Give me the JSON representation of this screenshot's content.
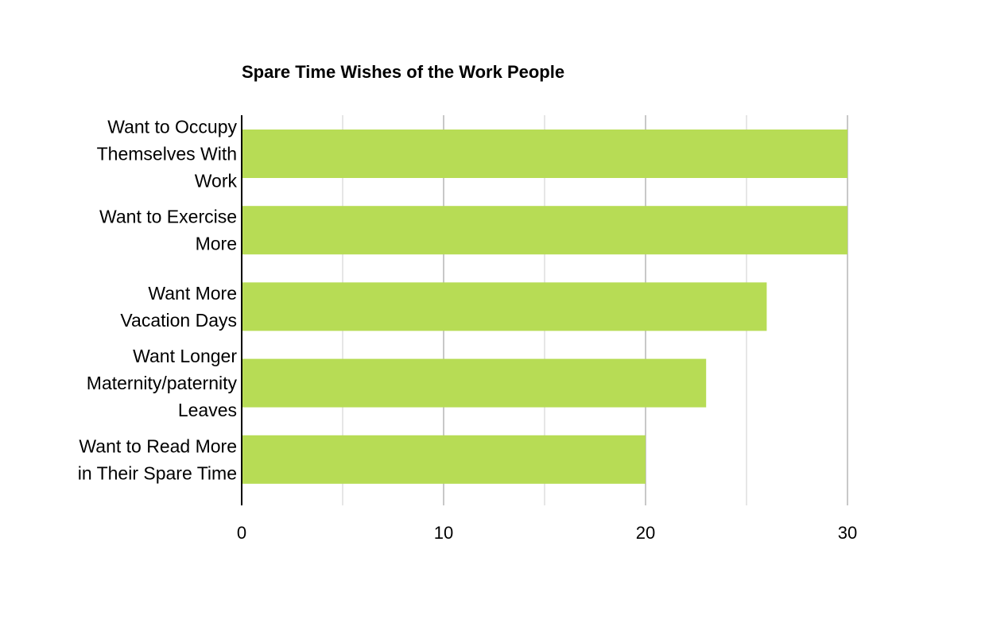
{
  "chart_data": {
    "type": "bar",
    "orientation": "horizontal",
    "title": "Spare Time Wishes of the Work People",
    "categories": [
      [
        "Want to Occupy",
        "Themselves With",
        "Work"
      ],
      [
        "Want to Exercise",
        "More"
      ],
      [
        "Want More",
        "Vacation Days"
      ],
      [
        "Want Longer",
        "Maternity/paternity",
        "Leaves"
      ],
      [
        "Want to Read More",
        "in Their Spare Time"
      ]
    ],
    "values": [
      30,
      30,
      26,
      23,
      20
    ],
    "xlim": [
      0,
      30
    ],
    "xticks": [
      "0",
      "10",
      "20",
      "30"
    ],
    "xlabel": "",
    "ylabel": "",
    "grid": true,
    "bar_color": "#b7dc55"
  }
}
